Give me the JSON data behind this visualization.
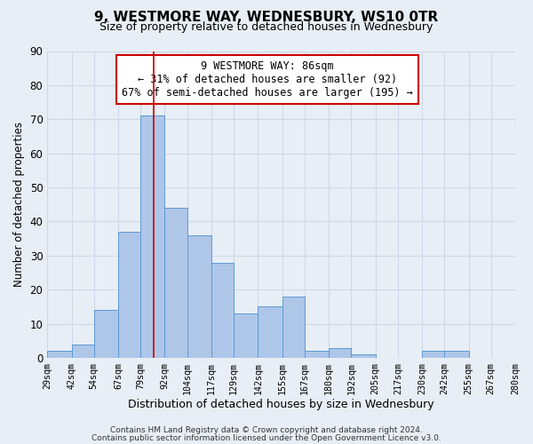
{
  "title": "9, WESTMORE WAY, WEDNESBURY, WS10 0TR",
  "subtitle": "Size of property relative to detached houses in Wednesbury",
  "xlabel": "Distribution of detached houses by size in Wednesbury",
  "ylabel": "Number of detached properties",
  "bin_labels": [
    "29sqm",
    "42sqm",
    "54sqm",
    "67sqm",
    "79sqm",
    "92sqm",
    "104sqm",
    "117sqm",
    "129sqm",
    "142sqm",
    "155sqm",
    "167sqm",
    "180sqm",
    "192sqm",
    "205sqm",
    "217sqm",
    "230sqm",
    "242sqm",
    "255sqm",
    "267sqm",
    "280sqm"
  ],
  "bin_edges": [
    29,
    42,
    54,
    67,
    79,
    92,
    104,
    117,
    129,
    142,
    155,
    167,
    180,
    192,
    205,
    217,
    230,
    242,
    255,
    267,
    280
  ],
  "counts": [
    2,
    4,
    14,
    37,
    71,
    44,
    36,
    28,
    13,
    15,
    18,
    2,
    3,
    1,
    0,
    0,
    2,
    2,
    0,
    0
  ],
  "bar_color": "#aec6e8",
  "bar_edge_color": "#5b9bd5",
  "grid_color": "#d0d8e8",
  "bg_color": "#e8eef5",
  "vline_x": 86,
  "vline_color": "#cc0000",
  "annotation_text": "9 WESTMORE WAY: 86sqm\n← 31% of detached houses are smaller (92)\n67% of semi-detached houses are larger (195) →",
  "annotation_box_color": "#ffffff",
  "annotation_box_edge": "#cc0000",
  "ylim": [
    0,
    90
  ],
  "yticks": [
    0,
    10,
    20,
    30,
    40,
    50,
    60,
    70,
    80,
    90
  ],
  "footer_line1": "Contains HM Land Registry data © Crown copyright and database right 2024.",
  "footer_line2": "Contains public sector information licensed under the Open Government Licence v3.0."
}
